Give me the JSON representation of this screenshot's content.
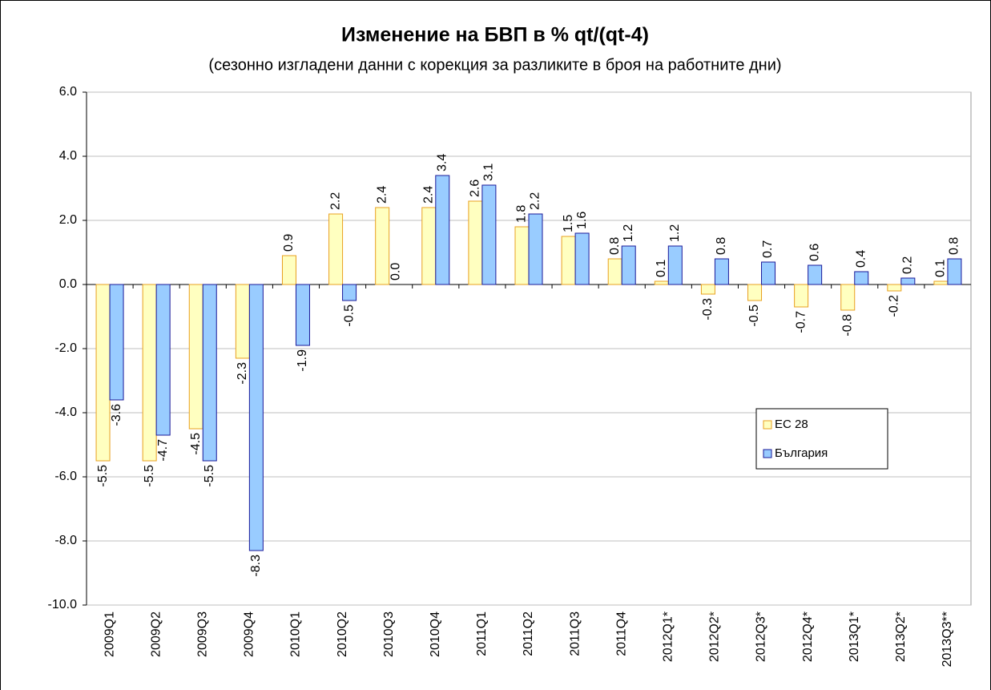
{
  "chart_data": {
    "type": "bar",
    "title": "Изменение на БВП в % qt/(qt-4)",
    "subtitle": "(сезонно изгладени данни с корекция за разликите в броя на работните дни)",
    "categories": [
      "2009Q1",
      "2009Q2",
      "2009Q3",
      "2009Q4",
      "2010Q1",
      "2010Q2",
      "2010Q3",
      "2010Q4",
      "2011Q1",
      "2011Q2",
      "2011Q3",
      "2011Q4",
      "2012Q1*",
      "2012Q2*",
      "2012Q3*",
      "2012Q4*",
      "2013Q1*",
      "2013Q2*",
      "2013Q3**"
    ],
    "series": [
      {
        "name": "ЕС 28",
        "color": "#ffffc0",
        "values": [
          -5.5,
          -5.5,
          -4.5,
          -2.3,
          0.9,
          2.2,
          2.4,
          2.4,
          2.6,
          1.8,
          1.5,
          0.8,
          0.1,
          -0.3,
          -0.5,
          -0.7,
          -0.8,
          -0.2,
          0.1
        ],
        "value_labels": [
          "-5.5",
          "-5.5",
          "-4.5",
          "-2.3",
          "0.9",
          "2.2",
          "2.4",
          "2.4",
          "2.6",
          "1.8",
          "1.5",
          "0.8",
          "0.1",
          "-0.3",
          "-0.5",
          "-0.7",
          "-0.8",
          "-0.2",
          "0.1"
        ]
      },
      {
        "name": "България",
        "color": "#99ccff",
        "values": [
          -3.6,
          -4.7,
          -5.5,
          -8.3,
          -1.9,
          -0.5,
          0.0,
          3.4,
          3.1,
          2.2,
          1.6,
          1.2,
          1.2,
          0.8,
          0.7,
          0.6,
          0.4,
          0.2,
          0.8
        ],
        "value_labels": [
          "-3.6",
          "-4.7",
          "-5.5",
          "-8.3",
          "-1.9",
          "-0.5",
          "0.0",
          "3.4",
          "3.1",
          "2.2",
          "1.6",
          "1.2",
          "1.2",
          "0.8",
          "0.7",
          "0.6",
          "0.4",
          "0.2",
          "0.8"
        ]
      }
    ],
    "ylim": [
      -10,
      6
    ],
    "yticks": [
      {
        "value": -10,
        "label": "-10.0"
      },
      {
        "value": -8,
        "label": "-8.0"
      },
      {
        "value": -6,
        "label": "-6.0"
      },
      {
        "value": -4,
        "label": "-4.0"
      },
      {
        "value": -2,
        "label": "-2.0"
      },
      {
        "value": 0,
        "label": "0.0"
      },
      {
        "value": 2,
        "label": "2.0"
      },
      {
        "value": 4,
        "label": "4.0"
      },
      {
        "value": 6,
        "label": "6.0"
      }
    ],
    "grid": true,
    "legend": "right"
  }
}
